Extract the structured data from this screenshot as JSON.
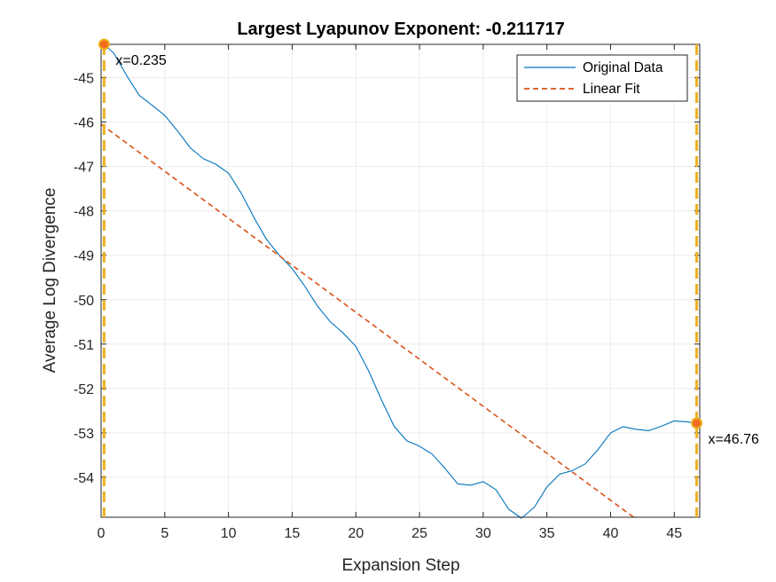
{
  "chart_data": {
    "type": "line",
    "title": "Largest Lyapunov Exponent: -0.211717",
    "xlabel": "Expansion Step",
    "ylabel": "Average Log Divergence",
    "xlim": [
      0,
      47
    ],
    "ylim": [
      -54.9,
      -44.25
    ],
    "xticks": [
      0,
      5,
      10,
      15,
      20,
      25,
      30,
      35,
      40,
      45
    ],
    "yticks": [
      -54,
      -53,
      -52,
      -51,
      -50,
      -49,
      -48,
      -47,
      -46,
      -45
    ],
    "grid": true,
    "legend_position": "top-right",
    "series": [
      {
        "name": "Original Data",
        "style": "solid",
        "color": "#0072BD",
        "x": [
          0.235,
          1,
          2,
          3,
          4,
          5,
          6,
          7,
          8,
          9,
          10,
          11,
          12,
          13,
          14,
          15,
          16,
          17,
          18,
          19,
          20,
          21,
          22,
          23,
          24,
          25,
          26,
          27,
          28,
          29,
          30,
          31,
          32,
          33,
          34,
          35,
          36,
          37,
          38,
          39,
          40,
          41,
          42,
          43,
          44,
          45,
          46,
          46.76
        ],
        "y": [
          -44.25,
          -44.45,
          -44.95,
          -45.4,
          -45.62,
          -45.85,
          -46.2,
          -46.58,
          -46.82,
          -46.95,
          -47.15,
          -47.6,
          -48.15,
          -48.65,
          -49.0,
          -49.3,
          -49.7,
          -50.15,
          -50.5,
          -50.75,
          -51.05,
          -51.6,
          -52.25,
          -52.85,
          -53.18,
          -53.3,
          -53.48,
          -53.8,
          -54.15,
          -54.18,
          -54.1,
          -54.28,
          -54.72,
          -54.92,
          -54.68,
          -54.22,
          -53.93,
          -53.85,
          -53.7,
          -53.38,
          -53.0,
          -52.86,
          -52.92,
          -52.95,
          -52.85,
          -52.73,
          -52.75,
          -52.78
        ]
      },
      {
        "name": "Linear Fit",
        "style": "dashed",
        "color": "#D95319",
        "x": [
          0,
          47
        ],
        "y": [
          -46.05,
          -56.0
        ]
      }
    ],
    "annotations": [
      {
        "label": "x=0.235",
        "x": 0.235,
        "y": -44.25,
        "label_side": "right-below"
      },
      {
        "label": "x=46.76",
        "x": 46.76,
        "y": -52.78,
        "label_side": "right-below"
      }
    ],
    "vertical_markers": [
      0.235,
      46.76
    ],
    "colors": {
      "marker_line": "#EDB120",
      "marker_dot_fill": "#F26B21",
      "marker_dot_edge": "#EDB120",
      "grid": "#EBEBEB",
      "axis": "#262626"
    }
  }
}
